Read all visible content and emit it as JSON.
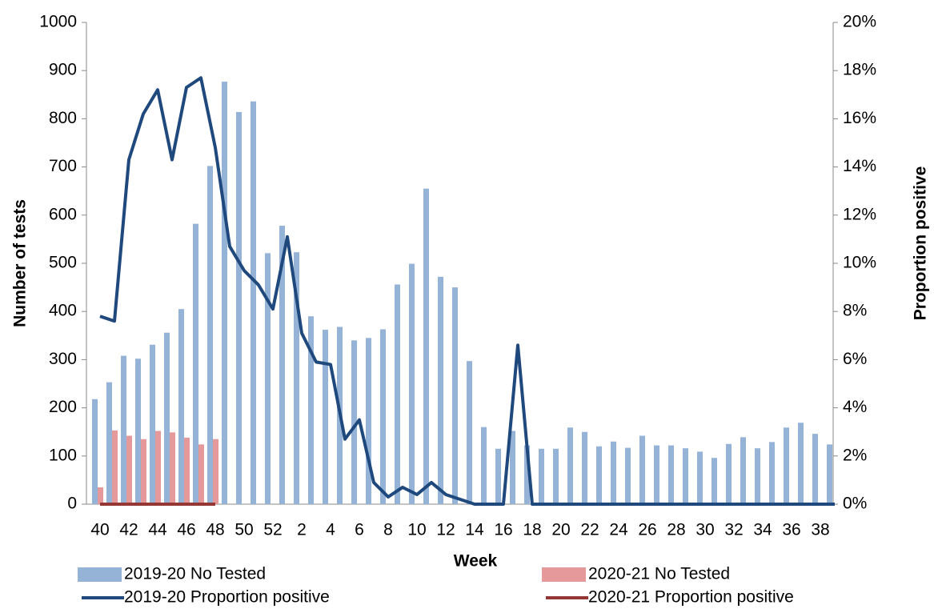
{
  "chart_data": {
    "type": "bar-line",
    "x_label": "Week",
    "y_label": "Number of tests",
    "y2_label": "Proportion positive",
    "categories": [
      40,
      null,
      42,
      null,
      44,
      null,
      46,
      null,
      48,
      null,
      50,
      null,
      52,
      null,
      2,
      null,
      4,
      null,
      6,
      null,
      8,
      null,
      10,
      null,
      12,
      null,
      14,
      null,
      16,
      null,
      18,
      null,
      20,
      null,
      22,
      null,
      24,
      null,
      26,
      null,
      28,
      null,
      30,
      null,
      32,
      null,
      34,
      null,
      36,
      null,
      38,
      null
    ],
    "ylim": [
      0,
      1000
    ],
    "yticks": [
      0,
      100,
      200,
      300,
      400,
      500,
      600,
      700,
      800,
      900,
      1000
    ],
    "y2lim": [
      0,
      20
    ],
    "y2ticks": [
      {
        "value": 0,
        "label": "0%"
      },
      {
        "value": 2,
        "label": "2%"
      },
      {
        "value": 4,
        "label": "4%"
      },
      {
        "value": 6,
        "label": "6%"
      },
      {
        "value": 8,
        "label": "8%"
      },
      {
        "value": 10,
        "label": "10%"
      },
      {
        "value": 12,
        "label": "12%"
      },
      {
        "value": 14,
        "label": "14%"
      },
      {
        "value": 16,
        "label": "16%"
      },
      {
        "value": 18,
        "label": "18%"
      },
      {
        "value": 20,
        "label": "20%"
      }
    ],
    "series": [
      {
        "name": "2019-20 No Tested",
        "type": "bar",
        "color": "#95b3d7",
        "values": [
          218,
          253,
          308,
          302,
          331,
          356,
          405,
          582,
          702,
          877,
          814,
          836,
          521,
          578,
          523,
          390,
          362,
          368,
          340,
          345,
          363,
          456,
          499,
          655,
          472,
          450,
          297,
          160,
          115,
          152,
          122,
          115,
          115,
          159,
          150,
          120,
          130,
          117,
          142,
          122,
          122,
          116,
          109,
          96,
          125,
          139,
          116,
          129,
          159,
          169,
          146,
          124
        ]
      },
      {
        "name": "2020-21 No Tested",
        "type": "bar",
        "color": "#e6999a",
        "values": [
          35,
          153,
          142,
          135,
          152,
          149,
          138,
          124,
          135,
          null,
          null,
          null,
          null,
          null,
          null,
          null,
          null,
          null,
          null,
          null,
          null,
          null,
          null,
          null,
          null,
          null,
          null,
          null,
          null,
          null,
          null,
          null,
          null,
          null,
          null,
          null,
          null,
          null,
          null,
          null,
          null,
          null,
          null,
          null,
          null,
          null,
          null,
          null,
          null,
          null,
          null,
          null
        ]
      },
      {
        "name": "2019-20 Proportion positive",
        "type": "line",
        "axis": "y2",
        "color": "#1f497d",
        "values": [
          7.8,
          7.6,
          14.3,
          16.2,
          17.2,
          14.3,
          17.3,
          17.7,
          14.8,
          10.7,
          9.7,
          9.1,
          8.1,
          11.1,
          7.1,
          5.9,
          5.8,
          2.7,
          3.5,
          0.9,
          0.3,
          0.7,
          0.4,
          0.9,
          0.4,
          0.2,
          0,
          0,
          0,
          6.6,
          0,
          0,
          0,
          0,
          0,
          0,
          0,
          0,
          0,
          0,
          0,
          0,
          0,
          0,
          0,
          0,
          0,
          0,
          0,
          0,
          0,
          0
        ]
      },
      {
        "name": "2020-21 Proportion positive",
        "type": "line",
        "axis": "y2",
        "color": "#953735",
        "values": [
          0,
          0,
          0,
          0,
          0,
          0,
          0,
          0,
          0,
          null,
          null,
          null,
          null,
          null,
          null,
          null,
          null,
          null,
          null,
          null,
          null,
          null,
          null,
          null,
          null,
          null,
          null,
          null,
          null,
          null,
          null,
          null,
          null,
          null,
          null,
          null,
          null,
          null,
          null,
          null,
          null,
          null,
          null,
          null,
          null,
          null,
          null,
          null,
          null,
          null,
          null,
          null
        ]
      }
    ]
  }
}
